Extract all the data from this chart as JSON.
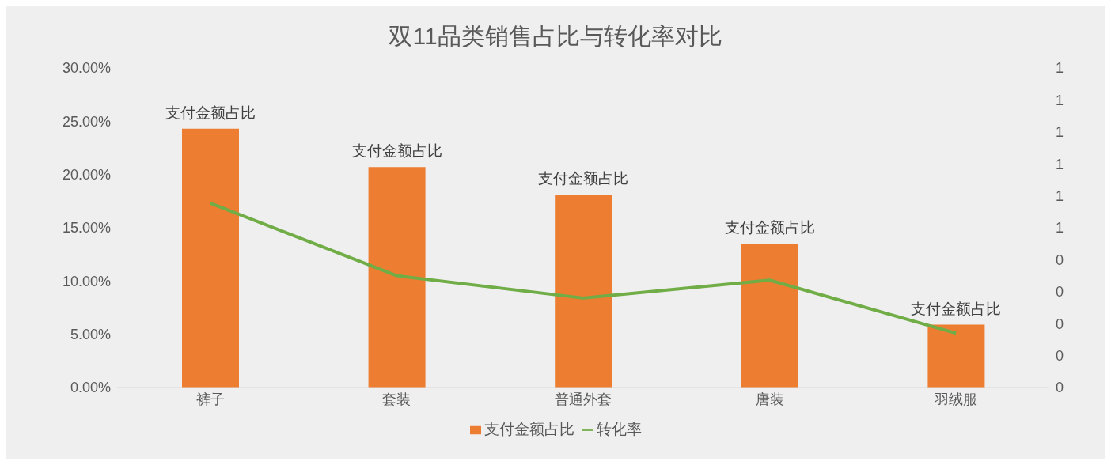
{
  "chart_data": {
    "type": "bar",
    "title": "双11品类销售占比与转化率对比",
    "categories": [
      "裤子",
      "套装",
      "普通外套",
      "唐装",
      "羽绒服"
    ],
    "series": [
      {
        "name": "支付金额占比",
        "color": "#ed7d31",
        "values": [
          24.3,
          20.7,
          18.1,
          13.5,
          5.9
        ],
        "value_labels": [
          "支付金额占比",
          "支付金额占比",
          "支付金额占比",
          "支付金额占比",
          "支付金额占比"
        ]
      },
      {
        "name": "转化率",
        "type": "line",
        "axis": "y2",
        "color": "#70ad47",
        "values": [
          0.577,
          0.35,
          0.28,
          0.336,
          0.17
        ]
      }
    ],
    "ylim": [
      0,
      30
    ],
    "yticks": [
      {
        "value": 0,
        "label": "0.00%"
      },
      {
        "value": 5,
        "label": "5.00%"
      },
      {
        "value": 10,
        "label": "10.00%"
      },
      {
        "value": 15,
        "label": "15.00%"
      },
      {
        "value": 20,
        "label": "20.00%"
      },
      {
        "value": 25,
        "label": "25.00%"
      },
      {
        "value": 30,
        "label": "30.00%"
      }
    ],
    "y2lim": [
      0,
      1
    ],
    "y2ticks": [
      {
        "value": 0,
        "label": "0"
      },
      {
        "value": 0.1,
        "label": "0"
      },
      {
        "value": 0.2,
        "label": "0"
      },
      {
        "value": 0.3,
        "label": "0"
      },
      {
        "value": 0.4,
        "label": "0"
      },
      {
        "value": 0.5,
        "label": "1"
      },
      {
        "value": 0.6,
        "label": "1"
      },
      {
        "value": 0.7,
        "label": "1"
      },
      {
        "value": 0.8,
        "label": "1"
      },
      {
        "value": 0.9,
        "label": "1"
      },
      {
        "value": 1,
        "label": "1"
      }
    ],
    "grid": false,
    "legend": "bottom"
  }
}
